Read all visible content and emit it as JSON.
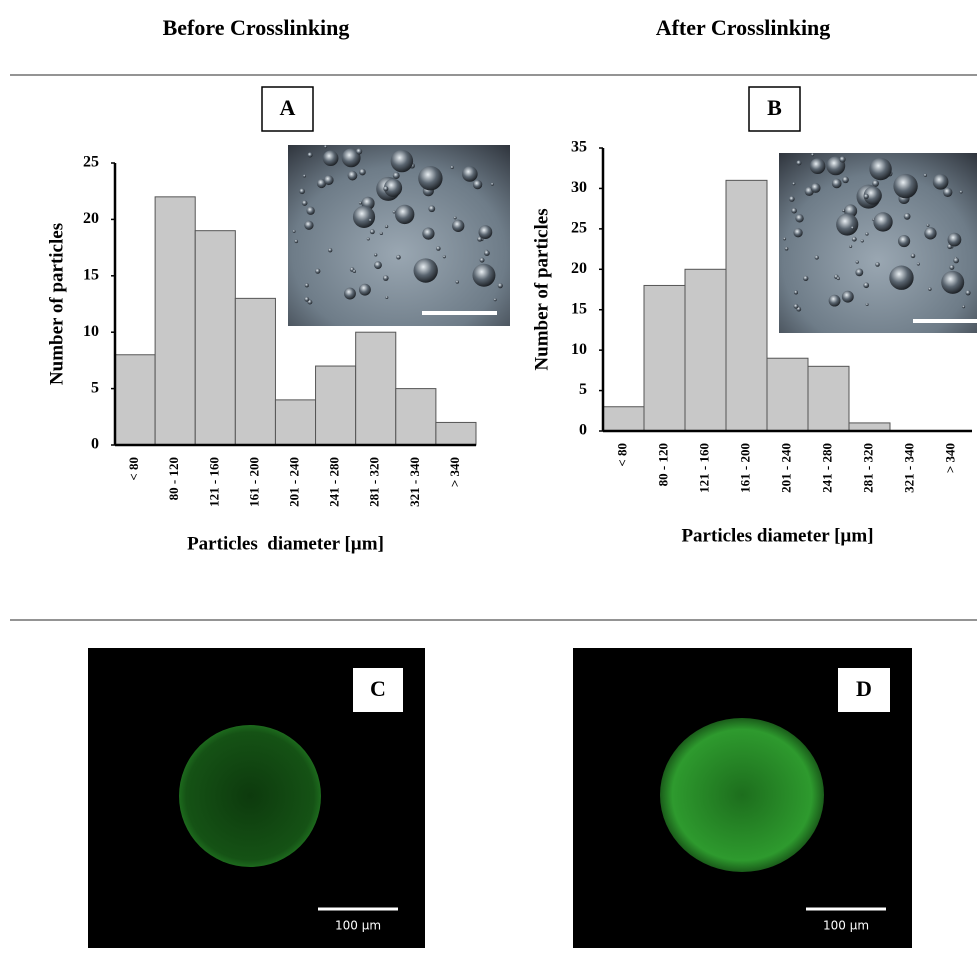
{
  "column_headers": [
    "Before Crosslinking",
    "After Crosslinking"
  ],
  "panel_labels": [
    "A",
    "B",
    "C",
    "D"
  ],
  "scale_bar_labels": [
    "100 µm",
    "100 µm"
  ],
  "chart_data": [
    {
      "type": "bar",
      "categories": [
        "< 80",
        "80 - 120",
        "121 - 160",
        "161 - 200",
        "201 - 240",
        "241 - 280",
        "281 - 320",
        "321 - 340",
        "> 340"
      ],
      "values": [
        8,
        22,
        19,
        13,
        4,
        7,
        10,
        5,
        2
      ],
      "color": "#c8c8c8",
      "ylim": [
        0,
        25
      ],
      "yticks": [
        0,
        5,
        10,
        15,
        20,
        25
      ],
      "xlabel": "Particles  diameter [µm]",
      "ylabel": "Number of particles",
      "grid": false
    },
    {
      "type": "bar",
      "categories": [
        "< 80",
        "80 - 120",
        "121 - 160",
        "161 - 200",
        "201 - 240",
        "241 - 280",
        "281 - 320",
        "321 - 340",
        "> 340"
      ],
      "values": [
        3,
        18,
        20,
        31,
        9,
        8,
        1,
        0,
        0
      ],
      "color": "#c8c8c8",
      "ylim": [
        0,
        35
      ],
      "yticks": [
        0,
        5,
        10,
        15,
        20,
        25,
        30,
        35
      ],
      "xlabel": "Particles diameter [µm]",
      "ylabel": "Number of particles",
      "grid": false
    }
  ]
}
